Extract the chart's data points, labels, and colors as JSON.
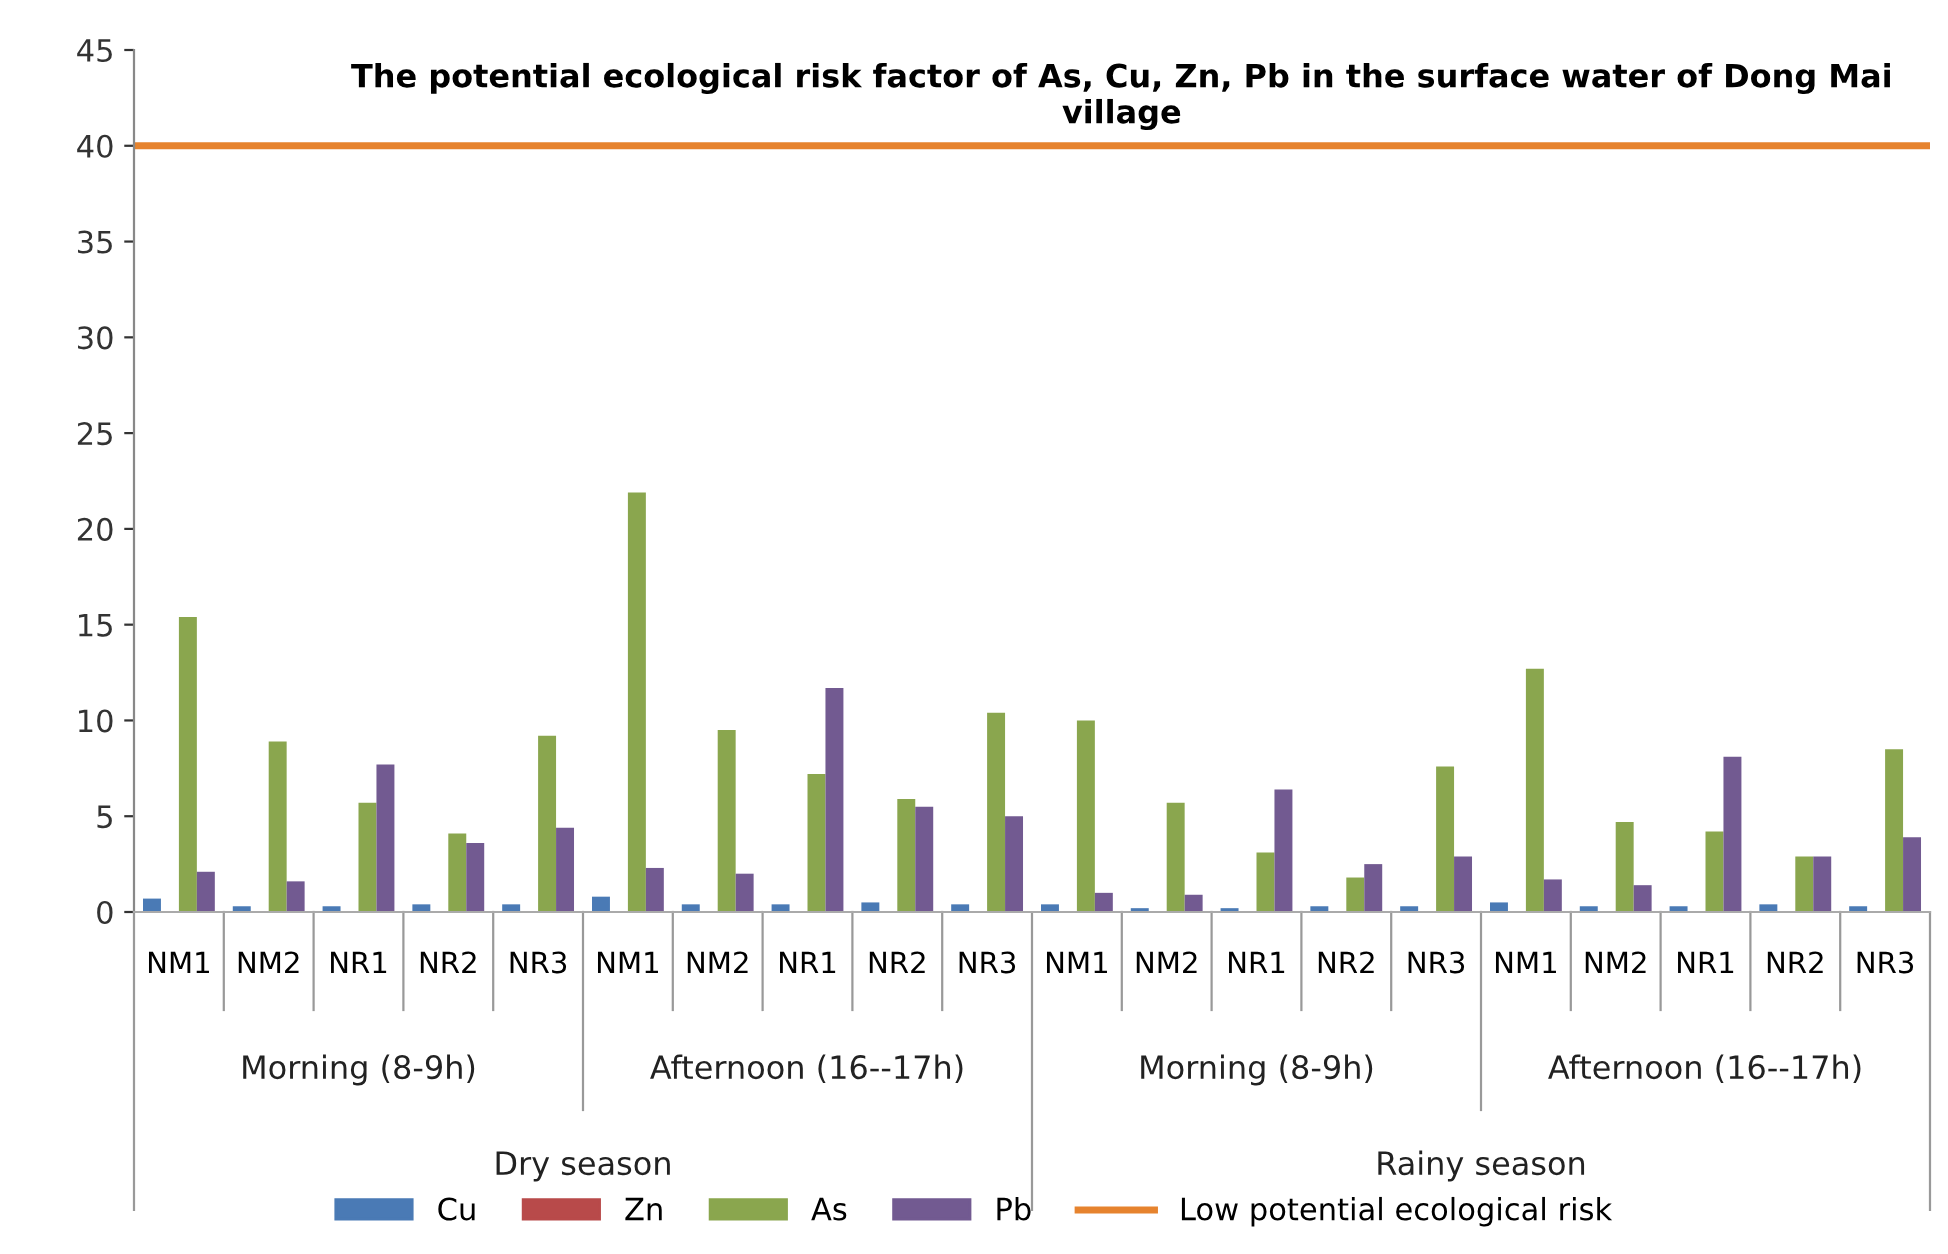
{
  "chart_data": {
    "type": "bar",
    "title": "The potential ecological risk factor of As, Cu, Zn, Pb in the surface water of Dong Mai village",
    "categories": [
      "NM1",
      "NM2",
      "NR1",
      "NR2",
      "NR3",
      "NM1",
      "NM2",
      "NR1",
      "NR2",
      "NR3",
      "NM1",
      "NM2",
      "NR1",
      "NR2",
      "NR3",
      "NM1",
      "NM2",
      "NR1",
      "NR2",
      "NR3"
    ],
    "series": [
      {
        "name": "Cu",
        "color": "#4a7ab5",
        "values": [
          0.7,
          0.3,
          0.3,
          0.4,
          0.4,
          0.8,
          0.4,
          0.4,
          0.5,
          0.4,
          0.4,
          0.2,
          0.2,
          0.3,
          0.3,
          0.5,
          0.3,
          0.3,
          0.4,
          0.3
        ]
      },
      {
        "name": "Zn",
        "color": "#b84a4a",
        "values": [
          0,
          0,
          0,
          0,
          0,
          0,
          0,
          0,
          0,
          0,
          0,
          0,
          0,
          0,
          0,
          0,
          0,
          0,
          0,
          0
        ]
      },
      {
        "name": "As",
        "color": "#8aa64e",
        "values": [
          15.4,
          8.9,
          5.7,
          4.1,
          9.2,
          21.9,
          9.5,
          7.2,
          5.9,
          10.4,
          10.0,
          5.7,
          3.1,
          1.8,
          7.6,
          12.7,
          4.7,
          4.2,
          2.9,
          8.5
        ]
      },
      {
        "name": "Pb",
        "color": "#725a91",
        "values": [
          2.1,
          1.6,
          7.7,
          3.6,
          4.4,
          2.3,
          2.0,
          11.7,
          5.5,
          5.0,
          1.0,
          0.9,
          6.4,
          2.5,
          2.9,
          1.7,
          1.4,
          8.1,
          2.9,
          3.9
        ]
      }
    ],
    "ref_lines": [
      {
        "axis": "y",
        "value": 40,
        "label": "Low potential ecological risk",
        "color": "#e6832e"
      }
    ],
    "annotations": [
      "Morning (8-9h)",
      "Afternoon (16--17h)",
      "Morning (8-9h)",
      "Afternoon (16--17h)",
      "Dry season",
      "Rainy season"
    ],
    "ylim": [
      0,
      45
    ],
    "yticks": [
      0,
      5,
      10,
      15,
      20,
      25,
      30,
      35,
      40,
      45
    ],
    "grid": false,
    "legend": "bottom"
  }
}
